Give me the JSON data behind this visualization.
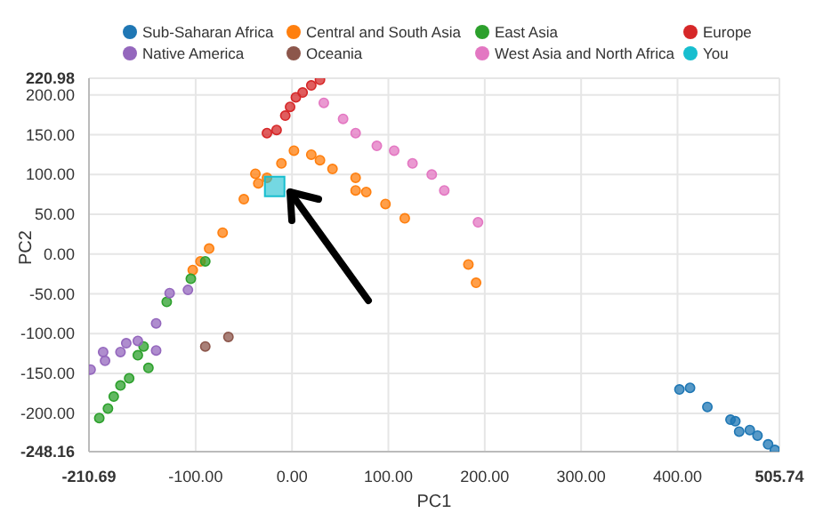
{
  "chart_data": {
    "type": "scatter",
    "xlabel": "PC1",
    "ylabel": "PC2",
    "xlim": [
      -210.69,
      505.74
    ],
    "ylim": [
      -248.16,
      220.98
    ],
    "xticks": [
      -210.69,
      {
        "value": -100,
        "label": "-100.00"
      },
      {
        "value": 0,
        "label": "0.00"
      },
      {
        "value": 100,
        "label": "100.00"
      },
      {
        "value": 200,
        "label": "200.00"
      },
      {
        "value": 300,
        "label": "300.00"
      },
      {
        "value": 400,
        "label": "400.00"
      },
      505.74
    ],
    "yticks": [
      -248.16,
      {
        "value": -200,
        "label": "-200.00"
      },
      {
        "value": -150,
        "label": "-150.00"
      },
      {
        "value": -100,
        "label": "-100.00"
      },
      {
        "value": -50,
        "label": "-50.00"
      },
      {
        "value": 0,
        "label": "0.00"
      },
      {
        "value": 50,
        "label": "50.00"
      },
      {
        "value": 100,
        "label": "100.00"
      },
      {
        "value": 150,
        "label": "150.00"
      },
      {
        "value": 200,
        "label": "200.00"
      },
      220.98
    ],
    "grid": true,
    "legend": "top",
    "marker": "circle",
    "series": [
      {
        "name": "Sub-Saharan Africa",
        "color": "#1f77b4",
        "x": [
          402,
          413,
          431,
          455,
          460,
          464,
          475,
          483,
          494,
          501
        ],
        "values": [
          -170,
          -168,
          -192,
          -208,
          -210,
          -223,
          -221,
          -228,
          -239,
          -246
        ]
      },
      {
        "name": "Central and South Asia",
        "color": "#ff7f0e",
        "x": [
          2,
          20,
          -11,
          29,
          -26,
          -38,
          -50,
          -35,
          42,
          66,
          97,
          117,
          66,
          77,
          183,
          191,
          -72,
          -86,
          -95,
          -103
        ],
        "values": [
          130,
          125,
          114,
          118,
          96,
          101,
          69,
          89,
          107,
          80,
          63,
          45,
          96,
          78,
          -13,
          -36,
          27,
          7,
          -9,
          -20
        ]
      },
      {
        "name": "East Asia",
        "color": "#2ca02c",
        "x": [
          -90,
          -105,
          -130,
          -154,
          -169,
          -185,
          -149,
          -178,
          -191,
          -160,
          -200
        ],
        "values": [
          -9,
          -31,
          -60,
          -116,
          -156,
          -179,
          -143,
          -165,
          -194,
          -127,
          -206
        ]
      },
      {
        "name": "Europe",
        "color": "#d62728",
        "x": [
          -16,
          -7,
          4,
          20,
          29,
          11,
          -2,
          -26
        ],
        "values": [
          156,
          174,
          197,
          212,
          219,
          203,
          185,
          152
        ]
      },
      {
        "name": "Native America",
        "color": "#9467bd",
        "x": [
          -127,
          -108,
          -141,
          -172,
          -196,
          -209,
          -194,
          -178,
          -160,
          -141
        ],
        "values": [
          -49,
          -45,
          -87,
          -112,
          -123,
          -145,
          -134,
          -123,
          -109,
          -121
        ]
      },
      {
        "name": "Oceania",
        "color": "#8c564b",
        "x": [
          -66,
          -90
        ],
        "values": [
          -104,
          -116
        ]
      },
      {
        "name": "West Asia and North Africa",
        "color": "#e377c2",
        "x": [
          33,
          53,
          66,
          88,
          106,
          125,
          145,
          158,
          193
        ],
        "values": [
          190,
          170,
          152,
          136,
          130,
          114,
          100,
          80,
          40
        ]
      },
      {
        "name": "You",
        "color": "#17becf",
        "marker": "square",
        "x": [
          -18
        ],
        "values": [
          85
        ]
      }
    ]
  }
}
